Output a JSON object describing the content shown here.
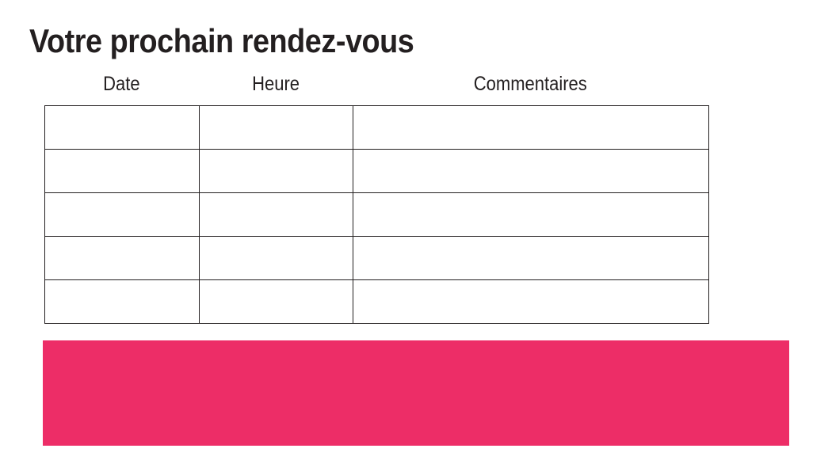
{
  "page": {
    "title": "Votre prochain rendez-vous"
  },
  "table": {
    "columns": [
      {
        "label": "Date"
      },
      {
        "label": "Heure"
      },
      {
        "label": "Commentaires"
      }
    ],
    "rows": [
      [
        "",
        "",
        ""
      ],
      [
        "",
        "",
        ""
      ],
      [
        "",
        "",
        ""
      ],
      [
        "",
        "",
        ""
      ],
      [
        "",
        "",
        ""
      ]
    ]
  },
  "highlight_bar": {
    "label": ""
  },
  "colors": {
    "accent_pink": "#ED2D67",
    "text": "#231F20",
    "table_border": "#231F20",
    "page_background": "#FFFFFF"
  }
}
